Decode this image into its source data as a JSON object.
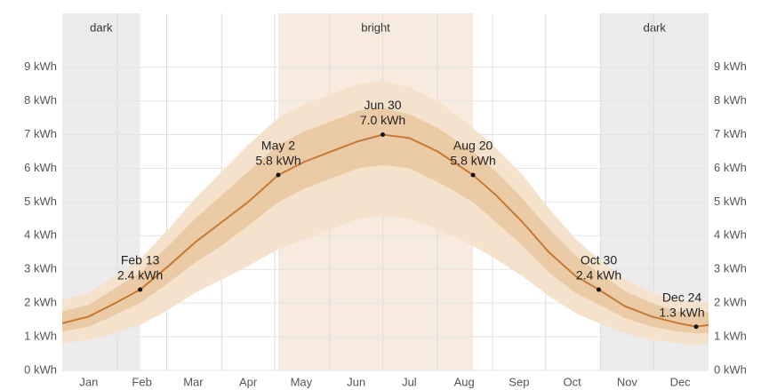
{
  "chart_data": {
    "type": "line",
    "xlim": [
      0,
      365
    ],
    "ylim": [
      0,
      10.6
    ],
    "xticks": [
      {
        "value": 15,
        "label": "Jan"
      },
      {
        "value": 45,
        "label": "Feb"
      },
      {
        "value": 74,
        "label": "Mar"
      },
      {
        "value": 105,
        "label": "Apr"
      },
      {
        "value": 135,
        "label": "May"
      },
      {
        "value": 166,
        "label": "Jun"
      },
      {
        "value": 196,
        "label": "Jul"
      },
      {
        "value": 227,
        "label": "Aug"
      },
      {
        "value": 258,
        "label": "Sep"
      },
      {
        "value": 288,
        "label": "Oct"
      },
      {
        "value": 319,
        "label": "Nov"
      },
      {
        "value": 349,
        "label": "Dec"
      }
    ],
    "x_gridlines": [
      31,
      59,
      90,
      120,
      151,
      181,
      212,
      243,
      273,
      304,
      334
    ],
    "yticks": [
      {
        "value": 0,
        "label": "0 kWh"
      },
      {
        "value": 1,
        "label": "1 kWh"
      },
      {
        "value": 2,
        "label": "2 kWh"
      },
      {
        "value": 3,
        "label": "3 kWh"
      },
      {
        "value": 4,
        "label": "4 kWh"
      },
      {
        "value": 5,
        "label": "5 kWh"
      },
      {
        "value": 6,
        "label": "6 kWh"
      },
      {
        "value": 7,
        "label": "7 kWh"
      },
      {
        "value": 8,
        "label": "8 kWh"
      },
      {
        "value": 9,
        "label": "9 kWh"
      }
    ],
    "grid": true,
    "regions": [
      {
        "label": "dark",
        "from": 0,
        "to": 44,
        "color": "#ececec"
      },
      {
        "label": "bright",
        "from": 122,
        "to": 232,
        "color": "#f7ebdf"
      },
      {
        "label": "dark",
        "from": 304,
        "to": 365,
        "color": "#ececec"
      }
    ],
    "x": [
      0,
      15,
      30,
      44,
      60,
      75,
      90,
      105,
      122,
      137,
      152,
      167,
      181,
      196,
      212,
      232,
      245,
      260,
      275,
      290,
      303,
      318,
      333,
      348,
      358,
      365
    ],
    "bands": [
      {
        "color": "#f4e2cd",
        "low": [
          0.8,
          0.9,
          1.1,
          1.35,
          1.8,
          2.3,
          2.7,
          3.1,
          3.6,
          3.9,
          4.2,
          4.5,
          4.6,
          4.5,
          4.2,
          3.7,
          3.3,
          2.8,
          2.2,
          1.7,
          1.4,
          1.1,
          0.9,
          0.8,
          0.75,
          0.8
        ],
        "high": [
          2.1,
          2.3,
          2.8,
          3.3,
          4.2,
          5.1,
          5.9,
          6.7,
          7.5,
          7.9,
          8.2,
          8.5,
          8.6,
          8.4,
          8.0,
          7.2,
          6.6,
          5.8,
          4.8,
          3.9,
          3.3,
          2.7,
          2.3,
          2.1,
          2.0,
          2.05
        ]
      },
      {
        "color": "#ebcaa6",
        "low": [
          1.15,
          1.3,
          1.65,
          2.0,
          2.6,
          3.2,
          3.7,
          4.3,
          5.0,
          5.4,
          5.7,
          6.0,
          6.1,
          6.0,
          5.6,
          5.0,
          4.4,
          3.7,
          2.9,
          2.3,
          1.95,
          1.55,
          1.3,
          1.15,
          1.1,
          1.1
        ],
        "high": [
          1.75,
          1.95,
          2.45,
          2.9,
          3.7,
          4.5,
          5.2,
          5.9,
          6.7,
          7.1,
          7.4,
          7.7,
          7.8,
          7.6,
          7.2,
          6.5,
          5.9,
          5.1,
          4.2,
          3.4,
          2.9,
          2.35,
          2.0,
          1.75,
          1.7,
          1.75
        ]
      }
    ],
    "color": "#c47a35",
    "values": [
      1.4,
      1.6,
      2.0,
      2.4,
      3.1,
      3.8,
      4.4,
      5.0,
      5.8,
      6.2,
      6.5,
      6.8,
      7.0,
      6.9,
      6.5,
      5.8,
      5.2,
      4.4,
      3.5,
      2.8,
      2.4,
      1.9,
      1.6,
      1.4,
      1.3,
      1.35
    ],
    "annotations": [
      {
        "x": 44,
        "value": 2.4,
        "date": "Feb 13",
        "label": "2.4 kWh"
      },
      {
        "x": 122,
        "value": 5.8,
        "date": "May 2",
        "label": "5.8 kWh"
      },
      {
        "x": 181,
        "value": 7.0,
        "date": "Jun 30",
        "label": "7.0 kWh"
      },
      {
        "x": 232,
        "value": 5.8,
        "date": "Aug 20",
        "label": "5.8 kWh"
      },
      {
        "x": 303,
        "value": 2.4,
        "date": "Oct 30",
        "label": "2.4 kWh"
      },
      {
        "x": 358,
        "value": 1.3,
        "date": "Dec 24",
        "label": "1.3 kWh"
      }
    ]
  }
}
